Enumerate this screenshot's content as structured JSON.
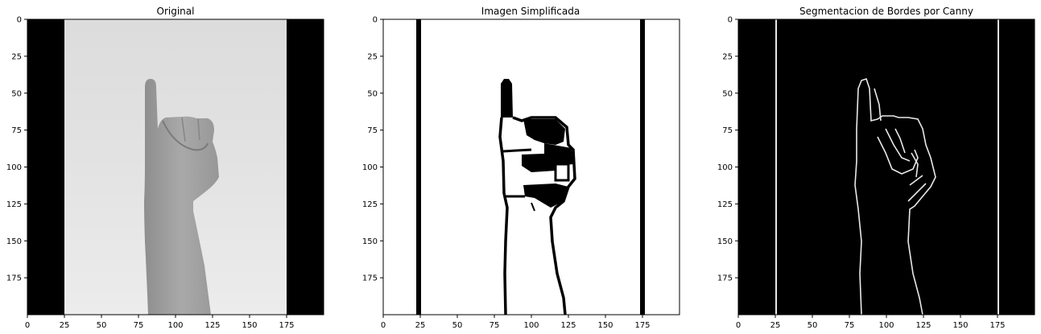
{
  "panels": [
    {
      "title": "Original",
      "x_ticks": [
        "0",
        "25",
        "50",
        "75",
        "100",
        "125",
        "150",
        "175"
      ],
      "y_ticks": [
        "0",
        "25",
        "50",
        "75",
        "100",
        "125",
        "150",
        "175"
      ]
    },
    {
      "title": "Imagen Simplificada",
      "x_ticks": [
        "0",
        "25",
        "50",
        "75",
        "100",
        "125",
        "150",
        "175"
      ],
      "y_ticks": [
        "0",
        "25",
        "50",
        "75",
        "100",
        "125",
        "150",
        "175"
      ]
    },
    {
      "title": "Segmentacion de Bordes por Canny",
      "x_ticks": [
        "0",
        "25",
        "50",
        "75",
        "100",
        "125",
        "150",
        "175"
      ],
      "y_ticks": [
        "0",
        "25",
        "50",
        "75",
        "100",
        "125",
        "150",
        "175"
      ]
    }
  ],
  "image_extent": [
    0,
    200
  ],
  "tick_values": [
    0,
    25,
    50,
    75,
    100,
    125,
    150,
    175
  ],
  "colors": {
    "original_bg": "#e6e6e6",
    "original_border": "#000000",
    "original_hand": "#9d9d9d",
    "simplified_bg": "#ffffff",
    "simplified_ink": "#000000",
    "canny_bg": "#000000",
    "canny_edge": "#ffffff"
  }
}
